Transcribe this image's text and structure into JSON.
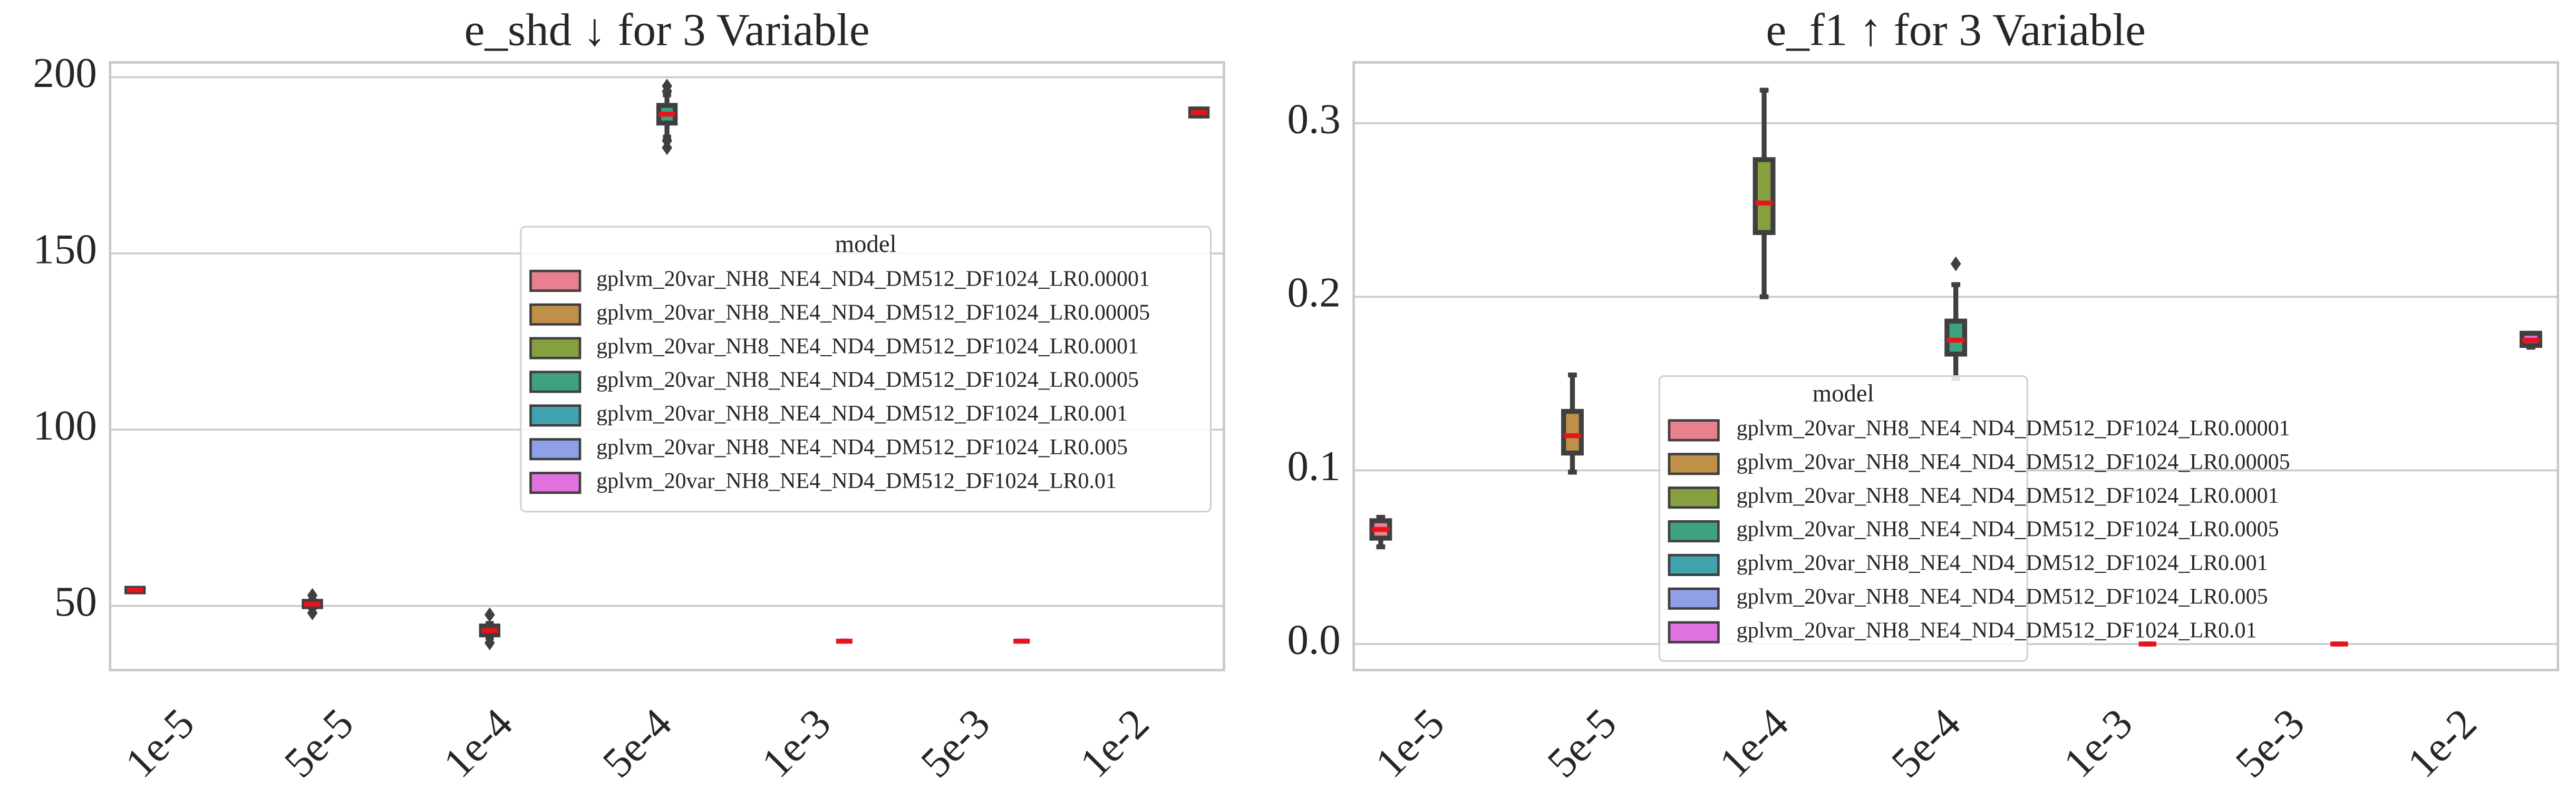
{
  "chart_data": [
    {
      "type": "box",
      "title": "e_shd ↓ for 3 Variable",
      "categories": [
        "1e-5",
        "5e-5",
        "1e-4",
        "5e-4",
        "1e-3",
        "5e-3",
        "1e-2"
      ],
      "ylim": [
        31.8,
        204.2
      ],
      "yticks": [
        50,
        100,
        150,
        200
      ],
      "grid": true,
      "legend_title": "model",
      "series": [
        {
          "name": "gplvm_20var_NH8_NE4_ND4_DM512_DF1024_LR0.00001",
          "color": "#e8808f",
          "values": [
            {
              "min": 54,
              "q1": 54,
              "median": 54.5,
              "q3": 55,
              "max": 55,
              "outliers": []
            },
            null,
            null,
            null,
            null,
            null,
            null
          ]
        },
        {
          "name": "gplvm_20var_NH8_NE4_ND4_DM512_DF1024_LR0.00005",
          "color": "#bf9148",
          "values": [
            null,
            {
              "min": 49.5,
              "q1": 49.8,
              "median": 50.5,
              "q3": 51.3,
              "max": 51.5,
              "outliers": [
                53,
                48
              ]
            },
            null,
            null,
            null,
            null,
            null
          ]
        },
        {
          "name": "gplvm_20var_NH8_NE4_ND4_DM512_DF1024_LR0.0001",
          "color": "#86a040",
          "values": [
            null,
            null,
            {
              "min": 41,
              "q1": 41.8,
              "median": 43,
              "q3": 44.3,
              "max": 45,
              "outliers": [
                47.5,
                39.5
              ]
            },
            null,
            null,
            null,
            null
          ]
        },
        {
          "name": "gplvm_20var_NH8_NE4_ND4_DM512_DF1024_LR0.0005",
          "color": "#3ea27f",
          "values": [
            null,
            null,
            null,
            {
              "min": 183,
              "q1": 187,
              "median": 189.5,
              "q3": 192,
              "max": 195,
              "outliers": [
                197.5,
                196,
                182,
                180
              ]
            },
            null,
            null,
            null
          ]
        },
        {
          "name": "gplvm_20var_NH8_NE4_ND4_DM512_DF1024_LR0.001",
          "color": "#40a3ae",
          "values": [
            null,
            null,
            null,
            null,
            {
              "min": 40,
              "q1": 40,
              "median": 40,
              "q3": 40,
              "max": 40,
              "outliers": []
            },
            null,
            null
          ]
        },
        {
          "name": "gplvm_20var_NH8_NE4_ND4_DM512_DF1024_LR0.005",
          "color": "#8fa0e8",
          "values": [
            null,
            null,
            null,
            null,
            null,
            {
              "min": 40,
              "q1": 40,
              "median": 40,
              "q3": 40,
              "max": 40,
              "outliers": []
            },
            null
          ]
        },
        {
          "name": "gplvm_20var_NH8_NE4_ND4_DM512_DF1024_LR0.01",
          "color": "#e072e0",
          "values": [
            null,
            null,
            null,
            null,
            null,
            null,
            {
              "min": 189,
              "q1": 189,
              "median": 190,
              "q3": 191,
              "max": 191,
              "outliers": []
            }
          ]
        }
      ]
    },
    {
      "type": "box",
      "title": "e_f1 ↑ for 3 Variable",
      "categories": [
        "1e-5",
        "5e-5",
        "1e-4",
        "5e-4",
        "1e-3",
        "5e-3",
        "1e-2"
      ],
      "ylim": [
        -0.015,
        0.335
      ],
      "yticks": [
        {
          "value": 0,
          "label": "0.0"
        },
        0.1,
        0.2,
        0.3
      ],
      "grid": true,
      "legend_title": "model",
      "series": [
        {
          "name": "gplvm_20var_NH8_NE4_ND4_DM512_DF1024_LR0.00001",
          "color": "#e8808f",
          "values": [
            {
              "min": 0.056,
              "q1": 0.061,
              "median": 0.066,
              "q3": 0.071,
              "max": 0.073,
              "outliers": []
            },
            null,
            null,
            null,
            null,
            null,
            null
          ]
        },
        {
          "name": "gplvm_20var_NH8_NE4_ND4_DM512_DF1024_LR0.00005",
          "color": "#bf9148",
          "values": [
            null,
            {
              "min": 0.099,
              "q1": 0.11,
              "median": 0.12,
              "q3": 0.134,
              "max": 0.155,
              "outliers": []
            },
            null,
            null,
            null,
            null,
            null
          ]
        },
        {
          "name": "gplvm_20var_NH8_NE4_ND4_DM512_DF1024_LR0.0001",
          "color": "#86a040",
          "values": [
            null,
            null,
            {
              "min": 0.2,
              "q1": 0.237,
              "median": 0.254,
              "q3": 0.279,
              "max": 0.319,
              "outliers": []
            },
            null,
            null,
            null,
            null
          ]
        },
        {
          "name": "gplvm_20var_NH8_NE4_ND4_DM512_DF1024_LR0.0005",
          "color": "#3ea27f",
          "values": [
            null,
            null,
            null,
            {
              "min": 0.153,
              "q1": 0.167,
              "median": 0.175,
              "q3": 0.186,
              "max": 0.207,
              "outliers": [
                0.219
              ]
            },
            null,
            null,
            null
          ]
        },
        {
          "name": "gplvm_20var_NH8_NE4_ND4_DM512_DF1024_LR0.001",
          "color": "#40a3ae",
          "values": [
            null,
            null,
            null,
            null,
            {
              "min": 0,
              "q1": 0,
              "median": 0,
              "q3": 0,
              "max": 0,
              "outliers": []
            },
            null,
            null
          ]
        },
        {
          "name": "gplvm_20var_NH8_NE4_ND4_DM512_DF1024_LR0.005",
          "color": "#8fa0e8",
          "values": [
            null,
            null,
            null,
            null,
            null,
            {
              "min": 0,
              "q1": 0,
              "median": 0,
              "q3": 0,
              "max": 0,
              "outliers": []
            },
            null
          ]
        },
        {
          "name": "gplvm_20var_NH8_NE4_ND4_DM512_DF1024_LR0.01",
          "color": "#e072e0",
          "values": [
            null,
            null,
            null,
            null,
            null,
            null,
            {
              "min": 0.171,
              "q1": 0.172,
              "median": 0.175,
              "q3": 0.179,
              "max": 0.179,
              "outliers": []
            }
          ]
        }
      ]
    }
  ]
}
